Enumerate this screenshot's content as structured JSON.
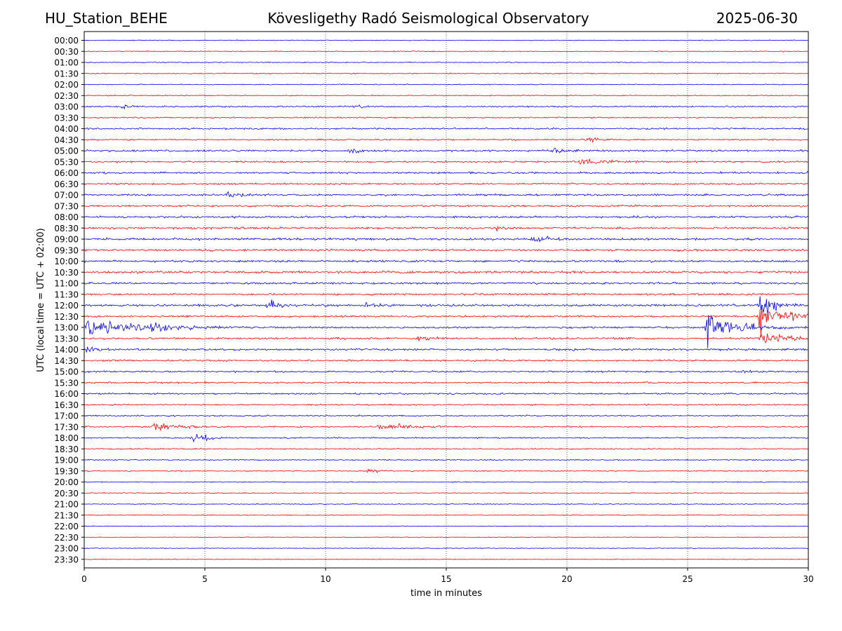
{
  "header": {
    "station": "HU_Station_BEHE",
    "observatory": "Kövesligethy Radó Seismological Observatory",
    "date": "2025-06-30"
  },
  "chart_data": {
    "type": "line",
    "title": "Kövesligethy Radó Seismological Observatory",
    "xlabel": "time in minutes",
    "ylabel": "UTC (local time = UTC + 02:00)",
    "xlim": [
      0,
      30
    ],
    "x_ticks": [
      0,
      5,
      10,
      15,
      20,
      25,
      30
    ],
    "grid": "vertical dotted lines at x ticks",
    "row_labels": [
      "00:00",
      "00:30",
      "01:00",
      "01:30",
      "02:00",
      "02:30",
      "03:00",
      "03:30",
      "04:00",
      "04:30",
      "05:00",
      "05:30",
      "06:00",
      "06:30",
      "07:00",
      "07:30",
      "08:00",
      "08:30",
      "09:00",
      "09:30",
      "10:00",
      "10:30",
      "11:00",
      "11:30",
      "12:00",
      "12:30",
      "13:00",
      "13:30",
      "14:00",
      "14:30",
      "15:00",
      "15:30",
      "16:00",
      "16:30",
      "17:00",
      "17:30",
      "18:00",
      "18:30",
      "19:00",
      "19:30",
      "20:00",
      "20:30",
      "21:00",
      "21:30",
      "22:00",
      "22:30",
      "23:00",
      "23:30"
    ],
    "row_colors": [
      "#0000ff",
      "#ff0000"
    ],
    "noise_level": [
      0.9,
      1.0,
      1.0,
      1.1,
      1.0,
      1.1,
      1.5,
      1.4,
      1.7,
      1.6,
      2.0,
      1.9,
      2.0,
      1.9,
      2.1,
      2.0,
      2.3,
      2.3,
      2.4,
      2.3,
      2.3,
      2.5,
      2.2,
      2.1,
      2.4,
      2.0,
      2.0,
      2.1,
      2.2,
      1.9,
      1.8,
      1.8,
      1.8,
      1.6,
      1.5,
      1.5,
      1.4,
      1.3,
      1.2,
      1.2,
      1.1,
      1.0,
      1.0,
      0.9,
      0.9,
      0.8,
      0.8,
      0.8
    ],
    "events": [
      {
        "row": "03:00",
        "minute": 1.6,
        "amplitude": 3,
        "duration": 0.3
      },
      {
        "row": "03:00",
        "minute": 11.2,
        "amplitude": 3,
        "duration": 0.3
      },
      {
        "row": "04:30",
        "minute": 20.8,
        "amplitude": 4,
        "duration": 0.4
      },
      {
        "row": "05:00",
        "minute": 11.0,
        "amplitude": 3,
        "duration": 0.4
      },
      {
        "row": "05:00",
        "minute": 19.4,
        "amplitude": 4,
        "duration": 0.5
      },
      {
        "row": "05:30",
        "minute": 20.4,
        "amplitude": 4,
        "duration": 1.0
      },
      {
        "row": "07:00",
        "minute": 5.9,
        "amplitude": 4,
        "duration": 0.4
      },
      {
        "row": "08:30",
        "minute": 17.1,
        "amplitude": 3,
        "duration": 0.3
      },
      {
        "row": "09:00",
        "minute": 18.6,
        "amplitude": 6,
        "duration": 0.5
      },
      {
        "row": "12:00",
        "minute": 7.6,
        "amplitude": 3,
        "duration": 0.3
      },
      {
        "row": "12:00",
        "minute": 7.7,
        "amplitude": 4,
        "duration": 0.3
      },
      {
        "row": "12:00",
        "minute": 11.7,
        "amplitude": 4,
        "duration": 0.3
      },
      {
        "row": "12:00",
        "minute": 28.0,
        "amplitude": 20,
        "duration": 0.4
      },
      {
        "row": "12:30",
        "minute": 28.0,
        "amplitude": 25,
        "duration": 0.8
      },
      {
        "row": "12:30",
        "minute": 30.0,
        "amplitude": 10,
        "duration": 0.3
      },
      {
        "row": "13:00",
        "minute": 0.1,
        "amplitude": 18,
        "duration": 0.4
      },
      {
        "row": "13:00",
        "minute": 0.9,
        "amplitude": 9,
        "duration": 1.4
      },
      {
        "row": "13:00",
        "minute": 2.8,
        "amplitude": 4,
        "duration": 0.8
      },
      {
        "row": "13:00",
        "minute": 25.8,
        "amplitude": 22,
        "duration": 1.0
      },
      {
        "row": "13:30",
        "minute": 13.8,
        "amplitude": 3,
        "duration": 0.4
      },
      {
        "row": "13:30",
        "minute": 28.0,
        "amplitude": 12,
        "duration": 0.5
      },
      {
        "row": "13:30",
        "minute": 28.8,
        "amplitude": 6,
        "duration": 0.4
      },
      {
        "row": "14:00",
        "minute": 0.1,
        "amplitude": 6,
        "duration": 0.3
      },
      {
        "row": "15:00",
        "minute": 27.3,
        "amplitude": 3,
        "duration": 0.3
      },
      {
        "row": "17:30",
        "minute": 2.9,
        "amplitude": 6,
        "duration": 0.7
      },
      {
        "row": "17:30",
        "minute": 12.2,
        "amplitude": 4,
        "duration": 1.2
      },
      {
        "row": "18:00",
        "minute": 4.5,
        "amplitude": 7,
        "duration": 0.3
      },
      {
        "row": "18:00",
        "minute": 5.0,
        "amplitude": 5,
        "duration": 0.2
      },
      {
        "row": "19:30",
        "minute": 11.8,
        "amplitude": 5,
        "duration": 0.3
      }
    ]
  }
}
